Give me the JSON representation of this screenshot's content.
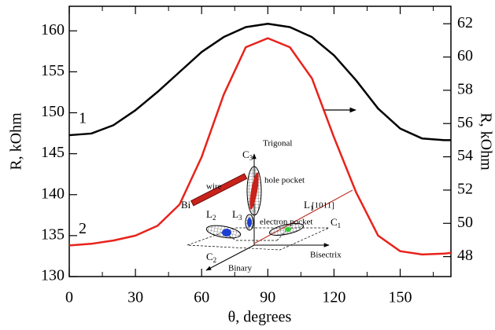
{
  "chart_data": {
    "type": "line",
    "x": [
      0,
      10,
      20,
      30,
      40,
      50,
      60,
      70,
      80,
      90,
      100,
      110,
      120,
      130,
      140,
      150,
      160,
      170,
      173
    ],
    "xlim": [
      0,
      173
    ],
    "xticks": [
      0,
      30,
      60,
      90,
      120,
      150
    ],
    "xminorticks": [
      15,
      45,
      75,
      105,
      135,
      165
    ],
    "xlabel": "θ, degrees",
    "ylabel": "R, kOhm",
    "y2label": "R, kOhm",
    "ylim": [
      130,
      163
    ],
    "yticks": [
      130,
      135,
      140,
      145,
      150,
      155,
      160
    ],
    "y2lim": [
      46.8,
      63.05
    ],
    "y2ticks": [
      48,
      50,
      52,
      54,
      56,
      58,
      60,
      62
    ],
    "series": [
      {
        "name": "1",
        "color": "#000000",
        "axis": "y2",
        "values": [
          55.3,
          55.4,
          55.9,
          56.8,
          57.9,
          59.1,
          60.3,
          61.2,
          61.8,
          62.0,
          61.8,
          61.2,
          60.1,
          58.6,
          56.9,
          55.7,
          55.1,
          55.0,
          55.0
        ]
      },
      {
        "name": "2",
        "color": "#e8221b",
        "values": [
          133.8,
          134.0,
          134.4,
          135.0,
          136.2,
          138.8,
          144.6,
          152.2,
          158.0,
          159.1,
          158.0,
          154.2,
          147.0,
          140.3,
          135.0,
          133.1,
          132.7,
          132.8,
          132.9
        ]
      }
    ],
    "inset": {
      "bi": "Bi",
      "wire": "wire",
      "c3": {
        "text": "C",
        "sub": "3"
      },
      "trigonal": "Trigonal",
      "hole_pocket": "hole pocket",
      "l1": {
        "text": "L",
        "sub": "1"
      },
      "direction": "[1011]",
      "l2": {
        "text": "L",
        "sub": "2"
      },
      "l3": {
        "text": "L",
        "sub": "3"
      },
      "electron_pocket": "electron pocket",
      "c1": {
        "text": "C",
        "sub": "1"
      },
      "bisectrix": "Bisectrix",
      "c2": {
        "text": "C",
        "sub": "2"
      },
      "binary": "Binary"
    }
  }
}
